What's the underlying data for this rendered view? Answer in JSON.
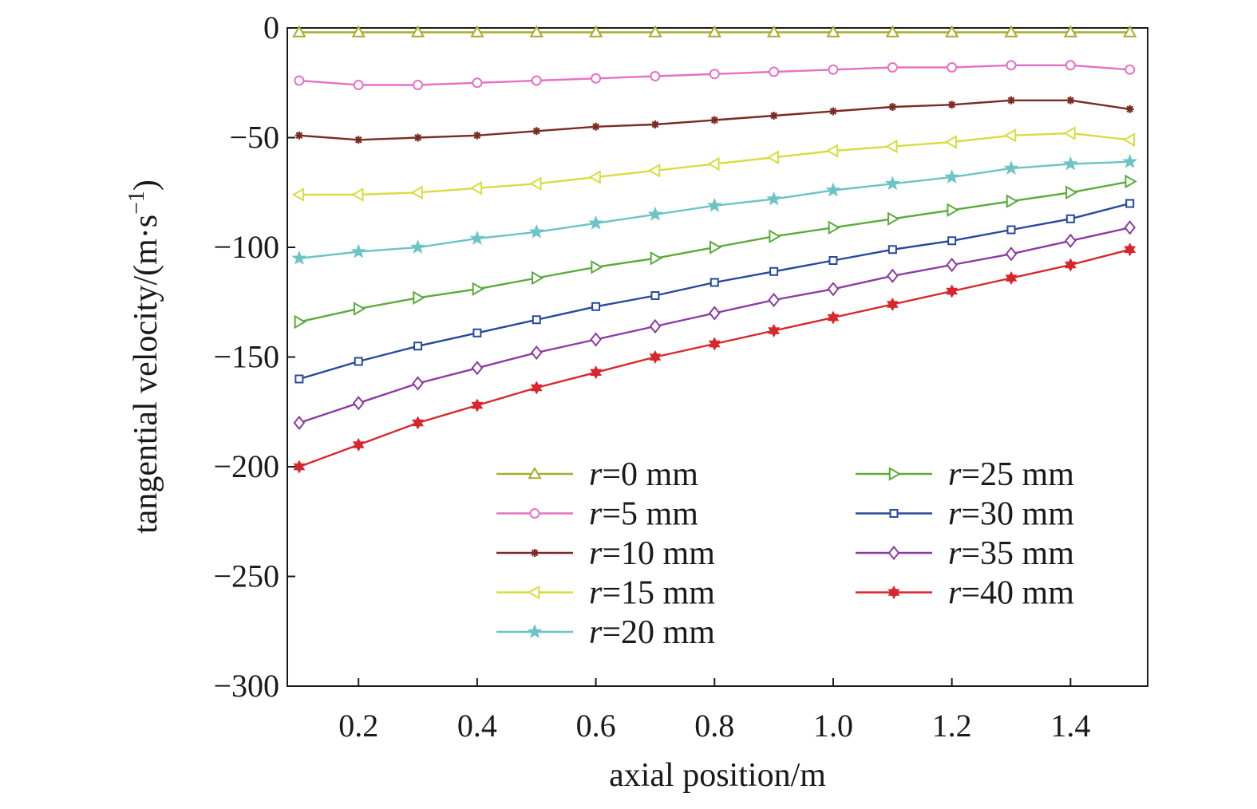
{
  "chart_data": {
    "type": "line",
    "xlabel": "axial position/m",
    "ylabel": "tangential velocity/(m·s",
    "ylabel_sup": "−1",
    "ylabel_close": ")",
    "xlim": [
      0.08,
      1.53
    ],
    "ylim": [
      -300,
      0
    ],
    "xticks": [
      0.2,
      0.4,
      0.6,
      0.8,
      1.0,
      1.2,
      1.4
    ],
    "xtick_labels": [
      "0.2",
      "0.4",
      "0.6",
      "0.8",
      "1.0",
      "1.2",
      "1.4"
    ],
    "yticks": [
      0,
      -50,
      -100,
      -150,
      -200,
      -250,
      -300
    ],
    "ytick_labels": [
      "0",
      "−50",
      "−100",
      "−150",
      "−200",
      "−250",
      "−300"
    ],
    "grid": false,
    "legend_position": "bottom-center",
    "x": [
      0.1,
      0.2,
      0.3,
      0.4,
      0.5,
      0.6,
      0.7,
      0.8,
      0.9,
      1.0,
      1.1,
      1.2,
      1.3,
      1.4,
      1.5
    ],
    "series": [
      {
        "name": "=0 mm",
        "italic_prefix": "r",
        "color": "#a8ac2e",
        "marker": "triangle-up",
        "values": [
          -2,
          -2,
          -2,
          -2,
          -2,
          -2,
          -2,
          -2,
          -2,
          -2,
          -2,
          -2,
          -2,
          -2,
          -2
        ]
      },
      {
        "name": "=5 mm",
        "italic_prefix": "r",
        "color": "#e472c4",
        "marker": "circle",
        "values": [
          -24,
          -26,
          -26,
          -25,
          -24,
          -23,
          -22,
          -21,
          -20,
          -19,
          -18,
          -18,
          -17,
          -17,
          -19
        ]
      },
      {
        "name": "=10 mm",
        "italic_prefix": "r",
        "color": "#7a2b22",
        "marker": "asterisk",
        "values": [
          -49,
          -51,
          -50,
          -49,
          -47,
          -45,
          -44,
          -42,
          -40,
          -38,
          -36,
          -35,
          -33,
          -33,
          -37
        ]
      },
      {
        "name": "=15 mm",
        "italic_prefix": "r",
        "color": "#d8dc42",
        "marker": "triangle-left",
        "values": [
          -76,
          -76,
          -75,
          -73,
          -71,
          -68,
          -65,
          -62,
          -59,
          -56,
          -54,
          -52,
          -49,
          -48,
          -51
        ]
      },
      {
        "name": "=20 mm",
        "italic_prefix": "r",
        "color": "#6cc4c4",
        "marker": "star",
        "values": [
          -105,
          -102,
          -100,
          -96,
          -93,
          -89,
          -85,
          -81,
          -78,
          -74,
          -71,
          -68,
          -64,
          -62,
          -61
        ]
      },
      {
        "name": "=25 mm",
        "italic_prefix": "r",
        "color": "#5bab3a",
        "marker": "triangle-right",
        "values": [
          -134,
          -128,
          -123,
          -119,
          -114,
          -109,
          -105,
          -100,
          -95,
          -91,
          -87,
          -83,
          -79,
          -75,
          -70
        ]
      },
      {
        "name": "=30 mm",
        "italic_prefix": "r",
        "color": "#27489c",
        "marker": "square",
        "values": [
          -160,
          -152,
          -145,
          -139,
          -133,
          -127,
          -122,
          -116,
          -111,
          -106,
          -101,
          -97,
          -92,
          -87,
          -80
        ]
      },
      {
        "name": "=35 mm",
        "italic_prefix": "r",
        "color": "#8e3aa3",
        "marker": "diamond",
        "values": [
          -180,
          -171,
          -162,
          -155,
          -148,
          -142,
          -136,
          -130,
          -124,
          -119,
          -113,
          -108,
          -103,
          -97,
          -91
        ]
      },
      {
        "name": "=40 mm",
        "italic_prefix": "r",
        "color": "#d8262d",
        "marker": "hexagram",
        "values": [
          -200,
          -190,
          -180,
          -172,
          -164,
          -157,
          -150,
          -144,
          -138,
          -132,
          -126,
          -120,
          -114,
          -108,
          -101
        ]
      }
    ]
  }
}
